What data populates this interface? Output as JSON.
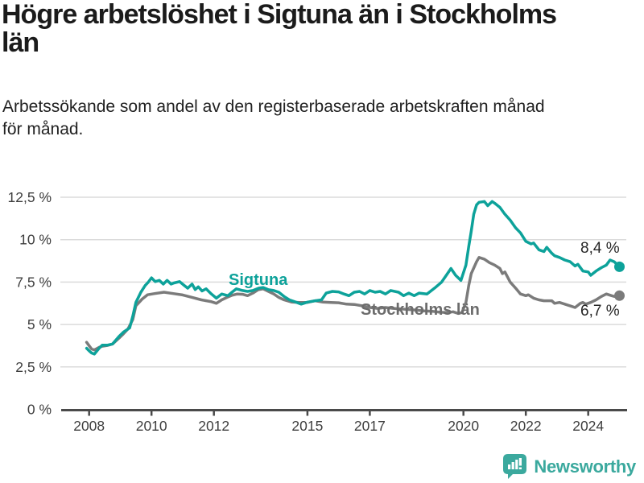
{
  "header": {
    "title_lines": [
      "Högre arbetslöshet i Sigtuna än i Stockholms",
      "län"
    ],
    "subtitle_lines": [
      "Arbetssökande som andel av den registerbaserade arbetskraften månad",
      "för månad."
    ]
  },
  "chart_data": {
    "type": "line",
    "title": "Högre arbetslöshet i Sigtuna än i Stockholms län",
    "subtitle": "Arbetssökande som andel av den registerbaserade arbetskraften månad för månad.",
    "unit": "%",
    "grid": "horizontal",
    "legend_position": "inline-labels",
    "x_range": [
      2008,
      2025
    ],
    "y_range": [
      0,
      12.5
    ],
    "x_ticks": {
      "values": [
        2008,
        2010,
        2012,
        2015,
        2017,
        2020,
        2022,
        2024
      ],
      "labels": [
        "2008",
        "2010",
        "2012",
        "2015",
        "2017",
        "2020",
        "2022",
        "2024"
      ]
    },
    "y_ticks": {
      "values": [
        0,
        2.5,
        5,
        7.5,
        10,
        12.5
      ],
      "labels": [
        "0 %",
        "2,5 %",
        "5 %",
        "7,5 %",
        "10 %",
        "12,5 %"
      ]
    },
    "series": [
      {
        "name": "Sigtuna",
        "color": "#0DA29A",
        "end_label": "8,4 %",
        "end_value": 8.4,
        "points": [
          [
            2007.92,
            3.6
          ],
          [
            2008.0,
            3.45
          ],
          [
            2008.08,
            3.32
          ],
          [
            2008.17,
            3.26
          ],
          [
            2008.33,
            3.62
          ],
          [
            2008.42,
            3.78
          ],
          [
            2008.58,
            3.78
          ],
          [
            2008.75,
            3.85
          ],
          [
            2008.96,
            4.3
          ],
          [
            2009.1,
            4.55
          ],
          [
            2009.3,
            4.8
          ],
          [
            2009.4,
            5.5
          ],
          [
            2009.5,
            6.3
          ],
          [
            2009.66,
            6.9
          ],
          [
            2009.8,
            7.3
          ],
          [
            2009.9,
            7.5
          ],
          [
            2010.0,
            7.75
          ],
          [
            2010.12,
            7.53
          ],
          [
            2010.25,
            7.6
          ],
          [
            2010.38,
            7.38
          ],
          [
            2010.5,
            7.6
          ],
          [
            2010.63,
            7.38
          ],
          [
            2010.72,
            7.45
          ],
          [
            2010.9,
            7.53
          ],
          [
            2011.05,
            7.3
          ],
          [
            2011.16,
            7.14
          ],
          [
            2011.3,
            7.38
          ],
          [
            2011.4,
            7.06
          ],
          [
            2011.5,
            7.22
          ],
          [
            2011.62,
            6.98
          ],
          [
            2011.75,
            7.1
          ],
          [
            2011.92,
            6.8
          ],
          [
            2012.08,
            6.55
          ],
          [
            2012.25,
            6.8
          ],
          [
            2012.45,
            6.7
          ],
          [
            2012.58,
            6.9
          ],
          [
            2012.72,
            7.1
          ],
          [
            2012.92,
            7.0
          ],
          [
            2013.08,
            6.95
          ],
          [
            2013.25,
            7.0
          ],
          [
            2013.45,
            7.15
          ],
          [
            2013.58,
            7.18
          ],
          [
            2013.75,
            7.05
          ],
          [
            2013.92,
            7.0
          ],
          [
            2014.08,
            6.9
          ],
          [
            2014.25,
            6.65
          ],
          [
            2014.42,
            6.45
          ],
          [
            2014.58,
            6.35
          ],
          [
            2014.8,
            6.2
          ],
          [
            2015.0,
            6.32
          ],
          [
            2015.25,
            6.4
          ],
          [
            2015.45,
            6.45
          ],
          [
            2015.6,
            6.85
          ],
          [
            2015.8,
            6.95
          ],
          [
            2016.0,
            6.92
          ],
          [
            2016.17,
            6.8
          ],
          [
            2016.33,
            6.7
          ],
          [
            2016.5,
            6.9
          ],
          [
            2016.67,
            6.95
          ],
          [
            2016.83,
            6.8
          ],
          [
            2017.0,
            7.0
          ],
          [
            2017.17,
            6.9
          ],
          [
            2017.33,
            6.95
          ],
          [
            2017.5,
            6.8
          ],
          [
            2017.67,
            7.0
          ],
          [
            2017.92,
            6.9
          ],
          [
            2018.08,
            6.7
          ],
          [
            2018.25,
            6.85
          ],
          [
            2018.42,
            6.7
          ],
          [
            2018.58,
            6.85
          ],
          [
            2018.83,
            6.8
          ],
          [
            2019.08,
            7.15
          ],
          [
            2019.3,
            7.5
          ],
          [
            2019.45,
            7.9
          ],
          [
            2019.6,
            8.3
          ],
          [
            2019.75,
            7.9
          ],
          [
            2019.92,
            7.6
          ],
          [
            2020.08,
            8.5
          ],
          [
            2020.17,
            9.6
          ],
          [
            2020.25,
            10.5
          ],
          [
            2020.33,
            11.5
          ],
          [
            2020.42,
            12.05
          ],
          [
            2020.5,
            12.2
          ],
          [
            2020.67,
            12.25
          ],
          [
            2020.78,
            12.0
          ],
          [
            2020.92,
            12.25
          ],
          [
            2021.0,
            12.15
          ],
          [
            2021.17,
            11.9
          ],
          [
            2021.33,
            11.5
          ],
          [
            2021.5,
            11.15
          ],
          [
            2021.67,
            10.7
          ],
          [
            2021.83,
            10.4
          ],
          [
            2022.0,
            9.9
          ],
          [
            2022.17,
            9.75
          ],
          [
            2022.25,
            9.8
          ],
          [
            2022.42,
            9.4
          ],
          [
            2022.58,
            9.3
          ],
          [
            2022.67,
            9.55
          ],
          [
            2022.83,
            9.2
          ],
          [
            2022.92,
            9.05
          ],
          [
            2023.08,
            8.95
          ],
          [
            2023.25,
            8.8
          ],
          [
            2023.42,
            8.7
          ],
          [
            2023.58,
            8.45
          ],
          [
            2023.67,
            8.55
          ],
          [
            2023.83,
            8.15
          ],
          [
            2024.0,
            8.1
          ],
          [
            2024.08,
            7.9
          ],
          [
            2024.25,
            8.15
          ],
          [
            2024.42,
            8.35
          ],
          [
            2024.58,
            8.5
          ],
          [
            2024.7,
            8.8
          ],
          [
            2024.83,
            8.7
          ],
          [
            2024.92,
            8.55
          ],
          [
            2025.0,
            8.4
          ]
        ]
      },
      {
        "name": "Stockholms län",
        "color": "#7B7B7B",
        "end_label": "6,7 %",
        "end_value": 6.7,
        "points": [
          [
            2007.92,
            3.95
          ],
          [
            2008.0,
            3.75
          ],
          [
            2008.08,
            3.56
          ],
          [
            2008.17,
            3.5
          ],
          [
            2008.33,
            3.66
          ],
          [
            2008.42,
            3.72
          ],
          [
            2008.58,
            3.76
          ],
          [
            2008.75,
            3.85
          ],
          [
            2008.96,
            4.2
          ],
          [
            2009.1,
            4.45
          ],
          [
            2009.25,
            4.75
          ],
          [
            2009.4,
            5.3
          ],
          [
            2009.5,
            6.1
          ],
          [
            2009.7,
            6.5
          ],
          [
            2009.87,
            6.75
          ],
          [
            2010.1,
            6.82
          ],
          [
            2010.4,
            6.9
          ],
          [
            2010.7,
            6.82
          ],
          [
            2011.0,
            6.74
          ],
          [
            2011.3,
            6.6
          ],
          [
            2011.6,
            6.45
          ],
          [
            2011.9,
            6.35
          ],
          [
            2012.08,
            6.25
          ],
          [
            2012.25,
            6.45
          ],
          [
            2012.42,
            6.6
          ],
          [
            2012.58,
            6.72
          ],
          [
            2012.75,
            6.8
          ],
          [
            2012.92,
            6.78
          ],
          [
            2013.08,
            6.7
          ],
          [
            2013.25,
            6.85
          ],
          [
            2013.42,
            7.05
          ],
          [
            2013.58,
            7.1
          ],
          [
            2013.75,
            6.95
          ],
          [
            2013.92,
            6.8
          ],
          [
            2014.08,
            6.6
          ],
          [
            2014.25,
            6.45
          ],
          [
            2014.5,
            6.32
          ],
          [
            2014.75,
            6.3
          ],
          [
            2015.0,
            6.3
          ],
          [
            2015.25,
            6.4
          ],
          [
            2015.5,
            6.32
          ],
          [
            2015.75,
            6.3
          ],
          [
            2016.0,
            6.28
          ],
          [
            2016.25,
            6.2
          ],
          [
            2016.5,
            6.18
          ],
          [
            2016.75,
            6.1
          ],
          [
            2017.0,
            6.0
          ],
          [
            2017.25,
            5.95
          ],
          [
            2017.5,
            6.0
          ],
          [
            2017.75,
            5.95
          ],
          [
            2018.0,
            5.92
          ],
          [
            2018.25,
            5.88
          ],
          [
            2018.5,
            5.85
          ],
          [
            2018.75,
            5.8
          ],
          [
            2019.0,
            5.78
          ],
          [
            2019.25,
            5.72
          ],
          [
            2019.5,
            5.7
          ],
          [
            2019.67,
            5.75
          ],
          [
            2019.83,
            5.65
          ],
          [
            2019.95,
            5.7
          ],
          [
            2020.08,
            6.3
          ],
          [
            2020.17,
            7.3
          ],
          [
            2020.25,
            8.0
          ],
          [
            2020.42,
            8.7
          ],
          [
            2020.5,
            8.95
          ],
          [
            2020.67,
            8.85
          ],
          [
            2020.83,
            8.65
          ],
          [
            2021.0,
            8.5
          ],
          [
            2021.17,
            8.3
          ],
          [
            2021.25,
            8.0
          ],
          [
            2021.33,
            8.1
          ],
          [
            2021.5,
            7.5
          ],
          [
            2021.67,
            7.15
          ],
          [
            2021.83,
            6.8
          ],
          [
            2022.0,
            6.7
          ],
          [
            2022.08,
            6.75
          ],
          [
            2022.25,
            6.55
          ],
          [
            2022.42,
            6.45
          ],
          [
            2022.58,
            6.4
          ],
          [
            2022.83,
            6.4
          ],
          [
            2022.92,
            6.25
          ],
          [
            2023.08,
            6.3
          ],
          [
            2023.25,
            6.2
          ],
          [
            2023.42,
            6.1
          ],
          [
            2023.58,
            6.0
          ],
          [
            2023.75,
            6.25
          ],
          [
            2023.83,
            6.3
          ],
          [
            2023.92,
            6.2
          ],
          [
            2024.08,
            6.3
          ],
          [
            2024.25,
            6.45
          ],
          [
            2024.42,
            6.65
          ],
          [
            2024.58,
            6.8
          ],
          [
            2024.75,
            6.7
          ],
          [
            2024.85,
            6.65
          ],
          [
            2025.0,
            6.7
          ]
        ]
      }
    ],
    "colors": {
      "axis": "#4A4A4A",
      "gridline": "#DBDBDB",
      "tick_text": "#3E3E3E"
    }
  },
  "footer": {
    "brand": "Newsworthy",
    "brand_color": "#3BA99E"
  }
}
